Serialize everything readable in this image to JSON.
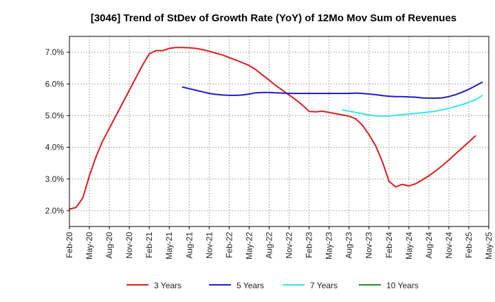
{
  "chart_data": {
    "type": "line",
    "title": "[3046]  Trend of StDev of Growth Rate (YoY) of 12Mo Mov Sum of Revenues",
    "xlabel": "",
    "ylabel": "",
    "ylim": [
      1.5,
      7.5
    ],
    "yticks": [
      2.0,
      3.0,
      4.0,
      5.0,
      6.0,
      7.0
    ],
    "ytick_labels": [
      "2.0%",
      "3.0%",
      "4.0%",
      "5.0%",
      "6.0%",
      "7.0%"
    ],
    "x_start": "Feb-20",
    "x_end": "May-25",
    "xtick_labels": [
      "Feb-20",
      "May-20",
      "Aug-20",
      "Nov-20",
      "Feb-21",
      "May-21",
      "Aug-21",
      "Nov-21",
      "Feb-22",
      "May-22",
      "Aug-22",
      "Nov-22",
      "Feb-23",
      "May-23",
      "Aug-23",
      "Nov-23",
      "Feb-24",
      "May-24",
      "Aug-24",
      "Nov-24",
      "Feb-25",
      "May-25"
    ],
    "grid": true,
    "legend_position": "bottom",
    "series": [
      {
        "name": "3 Years",
        "color": "#dd1a1a",
        "start": "Feb-20",
        "values": [
          2.05,
          2.1,
          2.4,
          3.1,
          3.7,
          4.2,
          4.6,
          5.0,
          5.4,
          5.8,
          6.2,
          6.6,
          6.95,
          7.05,
          7.05,
          7.12,
          7.15,
          7.15,
          7.14,
          7.12,
          7.08,
          7.03,
          6.97,
          6.91,
          6.83,
          6.75,
          6.67,
          6.58,
          6.45,
          6.28,
          6.12,
          5.95,
          5.8,
          5.65,
          5.5,
          5.33,
          5.13,
          5.12,
          5.14,
          5.1,
          5.06,
          5.02,
          4.98,
          4.9,
          4.7,
          4.4,
          4.05,
          3.55,
          2.93,
          2.75,
          2.83,
          2.78,
          2.85,
          2.97,
          3.1,
          3.25,
          3.42,
          3.6,
          3.79,
          3.98,
          4.17,
          4.36
        ]
      },
      {
        "name": "5 Years",
        "color": "#1a1acc",
        "start": "Jul-21",
        "values": [
          5.9,
          5.85,
          5.8,
          5.75,
          5.7,
          5.67,
          5.65,
          5.64,
          5.64,
          5.65,
          5.68,
          5.72,
          5.73,
          5.73,
          5.72,
          5.71,
          5.7,
          5.7,
          5.7,
          5.7,
          5.7,
          5.7,
          5.7,
          5.7,
          5.7,
          5.7,
          5.71,
          5.7,
          5.68,
          5.66,
          5.63,
          5.61,
          5.6,
          5.6,
          5.59,
          5.58,
          5.56,
          5.55,
          5.55,
          5.56,
          5.6,
          5.66,
          5.74,
          5.83,
          5.94,
          6.05
        ]
      },
      {
        "name": "7 Years",
        "color": "#33e6e6",
        "start": "Jul-23",
        "values": [
          5.18,
          5.14,
          5.1,
          5.06,
          5.02,
          4.99,
          4.98,
          4.99,
          5.01,
          5.03,
          5.05,
          5.07,
          5.09,
          5.11,
          5.14,
          5.18,
          5.23,
          5.29,
          5.35,
          5.42,
          5.5,
          5.63
        ]
      },
      {
        "name": "10 Years",
        "color": "#1e8c1e",
        "start": "Feb-25",
        "values": []
      }
    ]
  }
}
